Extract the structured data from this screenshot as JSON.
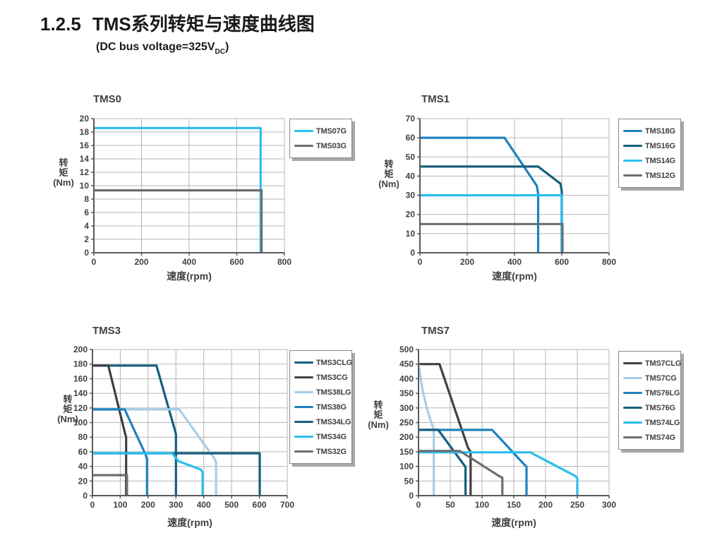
{
  "header": {
    "section_number": "1.2.5",
    "section_title": "TMS系列转矩与速度曲线图",
    "subtitle": {
      "prefix": "(DC bus voltage=325V",
      "subscript": "DC",
      "suffix": ")"
    }
  },
  "palette": {
    "cyan": "#2BBDEE",
    "medium_blue": "#1E82BE",
    "dark_teal": "#155F7E",
    "light_blue": "#A8CEE8",
    "charcoal": "#3F4042",
    "gray": "#6D6E71",
    "grid": "#B5B5B5",
    "axis": "#58595B",
    "text": "#414042"
  },
  "chart_data": [
    {
      "type": "line",
      "title": "TMS0",
      "xlabel": "速度(rpm)",
      "ylabel": "转矩(Nm)",
      "ylabel_lines": [
        "转",
        "矩",
        "(Nm)"
      ],
      "xlim": [
        0,
        800
      ],
      "ylim": [
        0,
        20
      ],
      "xticks": [
        0,
        200,
        400,
        600,
        800
      ],
      "yticks": [
        0,
        2,
        4,
        6,
        8,
        10,
        12,
        14,
        16,
        18,
        20
      ],
      "grid": true,
      "legend_position": "right",
      "series": [
        {
          "name": "TMS07G",
          "color": "cyan",
          "points": [
            [
              0,
              18.6
            ],
            [
              700,
              18.6
            ],
            [
              700,
              0
            ]
          ]
        },
        {
          "name": "TMS03G",
          "color": "gray",
          "points": [
            [
              0,
              9.3
            ],
            [
              704,
              9.3
            ],
            [
              704,
              0
            ]
          ]
        }
      ]
    },
    {
      "type": "line",
      "title": "TMS1",
      "xlabel": "速度(rpm)",
      "ylabel": "转矩(Nm)",
      "ylabel_lines": [
        "转",
        "矩",
        "(Nm)"
      ],
      "xlim": [
        0,
        800
      ],
      "ylim": [
        0,
        70
      ],
      "xticks": [
        0,
        200,
        400,
        600,
        800
      ],
      "yticks": [
        0,
        10,
        20,
        30,
        40,
        50,
        60,
        70
      ],
      "grid": true,
      "legend_position": "right",
      "series": [
        {
          "name": "TMS18G",
          "color": "medium_blue",
          "points": [
            [
              0,
              60
            ],
            [
              358,
              60
            ],
            [
              494,
              35
            ],
            [
              500,
              31
            ],
            [
              500,
              0
            ]
          ]
        },
        {
          "name": "TMS16G",
          "color": "dark_teal",
          "points": [
            [
              0,
              45
            ],
            [
              500,
              45
            ],
            [
              595,
              36
            ],
            [
              600,
              32
            ],
            [
              600,
              0
            ]
          ]
        },
        {
          "name": "TMS14G",
          "color": "cyan",
          "points": [
            [
              0,
              30
            ],
            [
              599,
              30
            ],
            [
              599,
              0
            ]
          ]
        },
        {
          "name": "TMS12G",
          "color": "gray",
          "points": [
            [
              0,
              15
            ],
            [
              603,
              15
            ],
            [
              603,
              0
            ]
          ]
        }
      ]
    },
    {
      "type": "line",
      "title": "TMS3",
      "xlabel": "速度(rpm)",
      "ylabel": "转矩(Nm)",
      "ylabel_lines": [
        "转",
        "矩",
        "(Nm)"
      ],
      "xlim": [
        0,
        700
      ],
      "ylim": [
        0,
        200
      ],
      "xticks": [
        0,
        100,
        200,
        300,
        400,
        500,
        600,
        700
      ],
      "yticks": [
        0,
        20,
        40,
        60,
        80,
        100,
        120,
        140,
        160,
        180,
        200
      ],
      "grid": true,
      "legend_position": "right",
      "series": [
        {
          "name": "TMS3CLG",
          "color": "dark_teal",
          "points": [
            [
              0,
              178
            ],
            [
              230,
              178
            ],
            [
              296,
              90
            ],
            [
              300,
              84
            ],
            [
              300,
              0
            ]
          ]
        },
        {
          "name": "TMS3CG",
          "color": "charcoal",
          "points": [
            [
              0,
              178
            ],
            [
              57,
              178
            ],
            [
              118,
              84
            ],
            [
              121,
              80
            ],
            [
              121,
              0
            ]
          ]
        },
        {
          "name": "TMS38LG",
          "color": "light_blue",
          "points": [
            [
              0,
              118
            ],
            [
              312,
              118
            ],
            [
              436,
              52
            ],
            [
              444,
              46
            ],
            [
              444,
              0
            ]
          ]
        },
        {
          "name": "TMS38G",
          "color": "medium_blue",
          "points": [
            [
              0,
              118
            ],
            [
              116,
              118
            ],
            [
              191,
              56
            ],
            [
              196,
              50
            ],
            [
              196,
              0
            ]
          ]
        },
        {
          "name": "TMS34LG",
          "color": "dark_teal",
          "points": [
            [
              0,
              58
            ],
            [
              601,
              58
            ],
            [
              601,
              0
            ]
          ]
        },
        {
          "name": "TMS34G",
          "color": "cyan",
          "points": [
            [
              0,
              58
            ],
            [
              286,
              58
            ],
            [
              310,
              47
            ],
            [
              345,
              42
            ],
            [
              388,
              36
            ],
            [
              396,
              32
            ],
            [
              396,
              0
            ]
          ]
        },
        {
          "name": "TMS32G",
          "color": "gray",
          "points": [
            [
              0,
              28
            ],
            [
              124,
              28
            ],
            [
              124,
              0
            ]
          ]
        }
      ]
    },
    {
      "type": "line",
      "title": "TMS7",
      "xlabel": "速度(rpm)",
      "ylabel": "转矩(Nm)",
      "ylabel_lines": [
        "转",
        "矩",
        "(Nm)"
      ],
      "xlim": [
        0,
        300
      ],
      "ylim": [
        0,
        500
      ],
      "xticks": [
        0,
        50,
        100,
        150,
        200,
        250,
        300
      ],
      "yticks": [
        0,
        50,
        100,
        150,
        200,
        250,
        300,
        350,
        400,
        450,
        500
      ],
      "grid": true,
      "legend_position": "right",
      "series": [
        {
          "name": "TMS7CLG",
          "color": "charcoal",
          "points": [
            [
              0,
              450
            ],
            [
              33,
              450
            ],
            [
              78,
              163
            ],
            [
              82,
              150
            ],
            [
              82,
              0
            ]
          ]
        },
        {
          "name": "TMS7CG",
          "color": "light_blue",
          "points": [
            [
              0,
              450
            ],
            [
              6,
              365
            ],
            [
              13,
              300
            ],
            [
              20,
              250
            ],
            [
              24,
              228
            ],
            [
              24,
              0
            ]
          ]
        },
        {
          "name": "TMS76LG",
          "color": "medium_blue",
          "points": [
            [
              0,
              225
            ],
            [
              116,
              225
            ],
            [
              165,
              110
            ],
            [
              170,
              99
            ],
            [
              170,
              0
            ]
          ]
        },
        {
          "name": "TMS76G",
          "color": "dark_teal",
          "points": [
            [
              0,
              225
            ],
            [
              31,
              225
            ],
            [
              70,
              110
            ],
            [
              74,
              98
            ],
            [
              74,
              0
            ]
          ]
        },
        {
          "name": "TMS74LG",
          "color": "cyan",
          "points": [
            [
              0,
              148
            ],
            [
              176,
              148
            ],
            [
              246,
              68
            ],
            [
              250,
              60
            ],
            [
              250,
              0
            ]
          ]
        },
        {
          "name": "TMS74G",
          "color": "gray",
          "points": [
            [
              0,
              153
            ],
            [
              65,
              153
            ],
            [
              126,
              68
            ],
            [
              132,
              61
            ],
            [
              132,
              0
            ]
          ]
        }
      ]
    }
  ]
}
